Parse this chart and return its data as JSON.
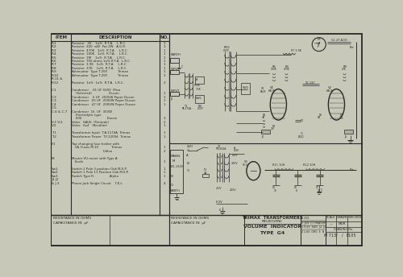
{
  "bg_color": "#c8c8b8",
  "paper_color": "#d4d4c0",
  "line_color": "#2a2a2a",
  "border_color": "#1a1a1a",
  "title": "VOLUME  INDICATOR",
  "subtitle": "TYPE  G4",
  "company_line1": "TRIMAX  TRANSFORMERS",
  "company_line2": "MELBOURNE",
  "drawing_no": "M 713/",
  "drawing_no2": "E105",
  "drawn_by": "MDR",
  "footer_left1": "RESISTANCE IN OHMS",
  "footer_left2": "CAPACITANCE IN  μF",
  "bom_items": [
    [
      "R.1",
      "Resistor   2K    1o%  R.T.A.    L.R.C.",
      "1"
    ],
    [
      "R.2",
      "Resistor  200  wW  Pot 2W   A.G.R.",
      "1"
    ],
    [
      "R.3",
      "Resistor  470K   1o%  R.T.A.    L.R.C.",
      "1"
    ],
    [
      "R.4",
      "Resistor  100K   1o%  R.T.A.    L.R.C.",
      "1"
    ],
    [
      "R.5",
      "Resistor  1M    1o%  R.T.A.    L.R.C.",
      "1"
    ],
    [
      "R.6",
      "Resistor  750 ohms 1o% R.T.A.  L.R.C.",
      "1"
    ],
    [
      "R.7",
      "Resistor  3.9K   1o%  R.T.A.    L.R.C.",
      "1"
    ],
    [
      "R.8",
      "Resistor  27K    1o%  R.T.A.    L.R.C.",
      "1"
    ],
    [
      "R.9",
      "Attenuator  Type T.25P.          Trimax",
      "1"
    ],
    [
      "R.10",
      "Attenuator  Type T.25P.          Trimax",
      "1"
    ],
    [
      "R.11 &",
      "",
      ""
    ],
    [
      "R.12",
      "Resistor  1o%  1o%  R.T.A.  L.R.C.",
      "2"
    ],
    [
      "",
      "",
      ""
    ],
    [
      "C.1",
      "Condenser   .01 UF 500V  Mica",
      ""
    ],
    [
      "",
      "    (Selected)                 Ducon",
      "1"
    ],
    [
      "C.2",
      "Condenser   .5 UF  200VW Paper Ducon",
      "1"
    ],
    [
      "C.3",
      "Condenser  .05 UF  200VW Paper Ducon",
      "1"
    ],
    [
      "C.4",
      "Condenser  .47 UF  200VW Paper Ducon",
      "1"
    ],
    [
      "C.5",
      "",
      ""
    ],
    [
      "C.6 & C.7",
      "Condenser  16  UF  35VW",
      ""
    ],
    [
      "",
      "    Electrolytic type",
      ""
    ],
    [
      "",
      "    600                         Ducon",
      "3"
    ],
    [
      "V.1 V.2",
      "Valve   6AU6  (Pentode)",
      "2"
    ],
    [
      "V.3",
      "Valve   6x4   (Rectifier)",
      "1"
    ],
    [
      "",
      "",
      ""
    ],
    [
      "T.1",
      "Transformer Input  T.A.1174A  Trimax",
      "1"
    ],
    [
      "T.2",
      "Transformer Power  T.F.22094  Trimax",
      "1"
    ],
    [
      "",
      "",
      ""
    ],
    [
      "F.1",
      "Top changing fuse holder with",
      ""
    ],
    [
      "",
      "   1A. Fuses M.10             Trimax",
      "1"
    ],
    [
      "",
      "                               Utilux",
      "2"
    ],
    [
      "",
      "",
      ""
    ],
    [
      "M.",
      "Master VU meter with Type A",
      ""
    ],
    [
      "",
      "   Scale",
      "1"
    ],
    [
      "",
      "",
      ""
    ],
    [
      "Sw1",
      "Switch 2 Pole 3 position Oak M.S.P.",
      "1"
    ],
    [
      "Sw2",
      "Switch 1 Pole 11 Position Oak M.S.P.",
      "1"
    ],
    [
      "Sw3",
      "Switch Type R.               Alpho",
      "1"
    ],
    [
      "J1 J2",
      "",
      ""
    ],
    [
      "& J.3",
      "Phone Jack Single Circuit    T.K.L.",
      "4"
    ]
  ],
  "fuse_rows": [
    [
      "1",
      "1-5S"
    ],
    [
      "2",
      "J-5S  CT HEATERS"
    ],
    [
      "3",
      "9-5S  SW3  J2, J3"
    ],
    [
      "4",
      "1-60  DRG  E  N"
    ]
  ]
}
